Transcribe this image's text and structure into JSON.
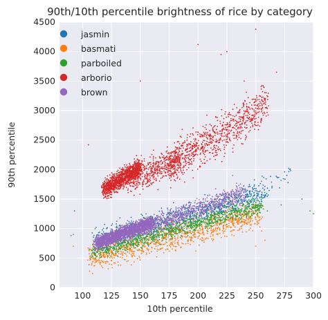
{
  "chart_data": {
    "type": "scatter",
    "title": "90th/10th percentile brightness of rice by category",
    "xlabel": "10th percentile",
    "ylabel": "90th percentile",
    "xlim": [
      80,
      300
    ],
    "ylim": [
      0,
      4500
    ],
    "xticks": [
      100,
      125,
      150,
      175,
      200,
      225,
      250,
      275,
      300
    ],
    "yticks": [
      0,
      500,
      1000,
      1500,
      2000,
      2500,
      3000,
      3500,
      4000,
      4500
    ],
    "grid": true,
    "legend_position": "top-left",
    "colors": {
      "jasmin": "#1f77b4",
      "basmati": "#ff7f0e",
      "parboiled": "#2ca02c",
      "arborio": "#d62728",
      "brown": "#9467bd",
      "plot_background": "#eaeaf2",
      "grid": "#ffffff"
    },
    "series": [
      {
        "name": "jasmin",
        "color": "#1f77b4",
        "clusters": [
          {
            "x_range": [
              110,
              260
            ],
            "y_at_x_min": 800,
            "y_at_x_max": 1600,
            "y_spread": 400,
            "n": 900
          },
          {
            "x_range": [
              230,
              280
            ],
            "y_at_x_min": 1500,
            "y_at_x_max": 1900,
            "y_spread": 300,
            "n": 40
          }
        ],
        "outliers": [
          [
            93,
            1300
          ],
          [
            275,
            1960
          ],
          [
            290,
            1500
          ],
          [
            272,
            1400
          ]
        ]
      },
      {
        "name": "basmati",
        "color": "#ff7f0e",
        "clusters": [
          {
            "x_range": [
              105,
              255
            ],
            "y_at_x_min": 500,
            "y_at_x_max": 1250,
            "y_spread": 450,
            "n": 1000
          }
        ],
        "outliers": [
          [
            92,
            700
          ],
          [
            250,
            700
          ],
          [
            258,
            800
          ]
        ]
      },
      {
        "name": "parboiled",
        "color": "#2ca02c",
        "clusters": [
          {
            "x_range": [
              108,
              255
            ],
            "y_at_x_min": 600,
            "y_at_x_max": 1400,
            "y_spread": 300,
            "n": 1000
          }
        ],
        "outliers": [
          [
            90,
            880
          ],
          [
            297,
            1300
          ],
          [
            300,
            1250
          ],
          [
            260,
            1300
          ]
        ]
      },
      {
        "name": "arborio",
        "color": "#d62728",
        "clusters": [
          {
            "x_range": [
              118,
              150
            ],
            "y_at_x_min": 1650,
            "y_at_x_max": 2050,
            "y_spread": 300,
            "n": 1100
          },
          {
            "x_range": [
              140,
              185
            ],
            "y_at_x_min": 1800,
            "y_at_x_max": 2200,
            "y_spread": 450,
            "n": 500
          },
          {
            "x_range": [
              175,
              260
            ],
            "y_at_x_min": 2050,
            "y_at_x_max": 3100,
            "y_spread": 650,
            "n": 800
          }
        ],
        "outliers": [
          [
            250,
            4380
          ],
          [
            225,
            4000
          ],
          [
            220,
            3950
          ],
          [
            268,
            3650
          ],
          [
            150,
            3500
          ],
          [
            105,
            2420
          ],
          [
            200,
            4120
          ],
          [
            240,
            3500
          ]
        ]
      },
      {
        "name": "brown",
        "color": "#9467bd",
        "clusters": [
          {
            "x_range": [
              112,
              160
            ],
            "y_at_x_min": 750,
            "y_at_x_max": 1100,
            "y_spread": 220,
            "n": 2000
          },
          {
            "x_range": [
              150,
              240
            ],
            "y_at_x_min": 1000,
            "y_at_x_max": 1600,
            "y_spread": 300,
            "n": 700
          }
        ],
        "outliers": [
          [
            92,
            900
          ],
          [
            230,
            1900
          ],
          [
            255,
            1800
          ]
        ]
      }
    ]
  }
}
